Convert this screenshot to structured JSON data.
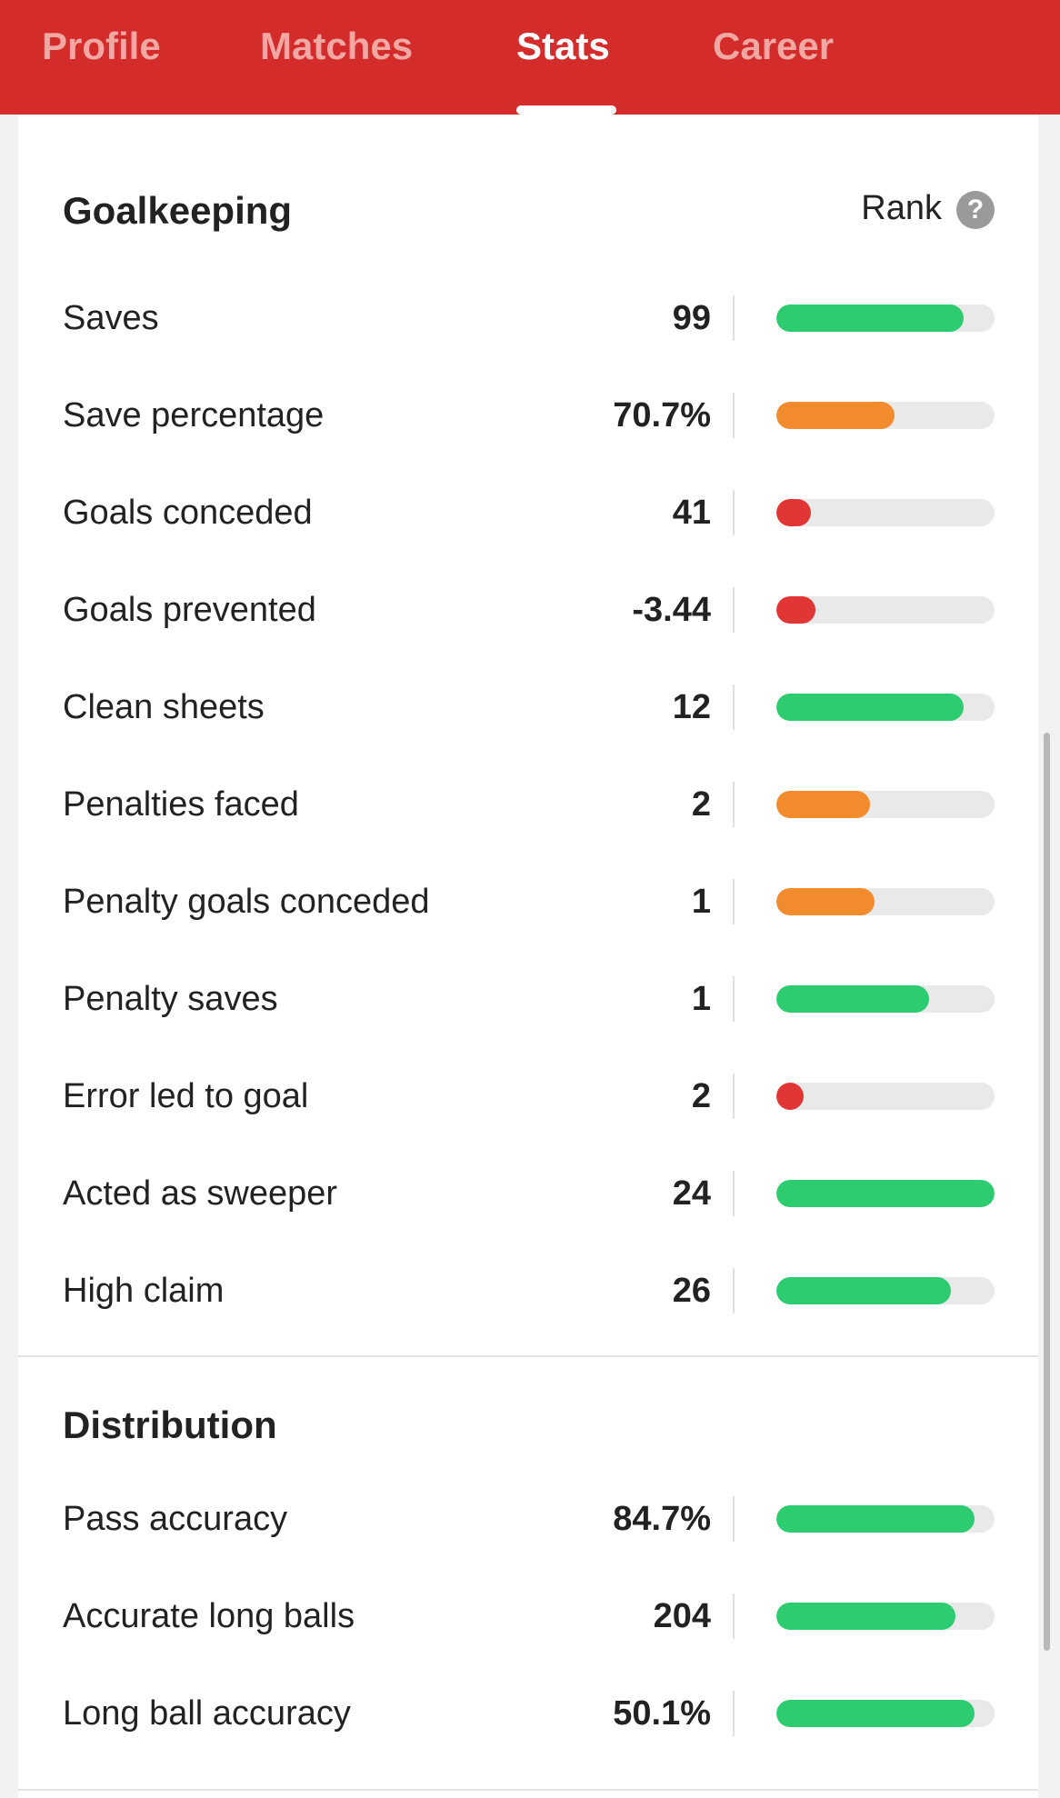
{
  "tabs": [
    {
      "label": "Profile",
      "active": false
    },
    {
      "label": "Matches",
      "active": false
    },
    {
      "label": "Stats",
      "active": true
    },
    {
      "label": "Career",
      "active": false
    }
  ],
  "colors": {
    "header": "#d42b2b",
    "good": "#2ecc71",
    "average": "#f28a2e",
    "poor": "#e23636"
  },
  "goalkeeping": {
    "title": "Goalkeeping",
    "rank_label": "Rank",
    "help_icon": "?",
    "rows": [
      {
        "label": "Saves",
        "value": "99",
        "rank": 0.86,
        "level": "good"
      },
      {
        "label": "Save percentage",
        "value": "70.7%",
        "rank": 0.54,
        "level": "average"
      },
      {
        "label": "Goals conceded",
        "value": "41",
        "rank": 0.16,
        "level": "poor"
      },
      {
        "label": "Goals prevented",
        "value": "-3.44",
        "rank": 0.18,
        "level": "poor"
      },
      {
        "label": "Clean sheets",
        "value": "12",
        "rank": 0.86,
        "level": "good"
      },
      {
        "label": "Penalties faced",
        "value": "2",
        "rank": 0.43,
        "level": "average"
      },
      {
        "label": "Penalty goals conceded",
        "value": "1",
        "rank": 0.45,
        "level": "average"
      },
      {
        "label": "Penalty saves",
        "value": "1",
        "rank": 0.7,
        "level": "good"
      },
      {
        "label": "Error led to goal",
        "value": "2",
        "rank": 0.12,
        "level": "poor"
      },
      {
        "label": "Acted as sweeper",
        "value": "24",
        "rank": 1.0,
        "level": "good"
      },
      {
        "label": "High claim",
        "value": "26",
        "rank": 0.8,
        "level": "good"
      }
    ]
  },
  "distribution": {
    "title": "Distribution",
    "rows": [
      {
        "label": "Pass accuracy",
        "value": "84.7%",
        "rank": 0.91,
        "level": "good"
      },
      {
        "label": "Accurate long balls",
        "value": "204",
        "rank": 0.82,
        "level": "good"
      },
      {
        "label": "Long ball accuracy",
        "value": "50.1%",
        "rank": 0.91,
        "level": "good"
      }
    ]
  }
}
